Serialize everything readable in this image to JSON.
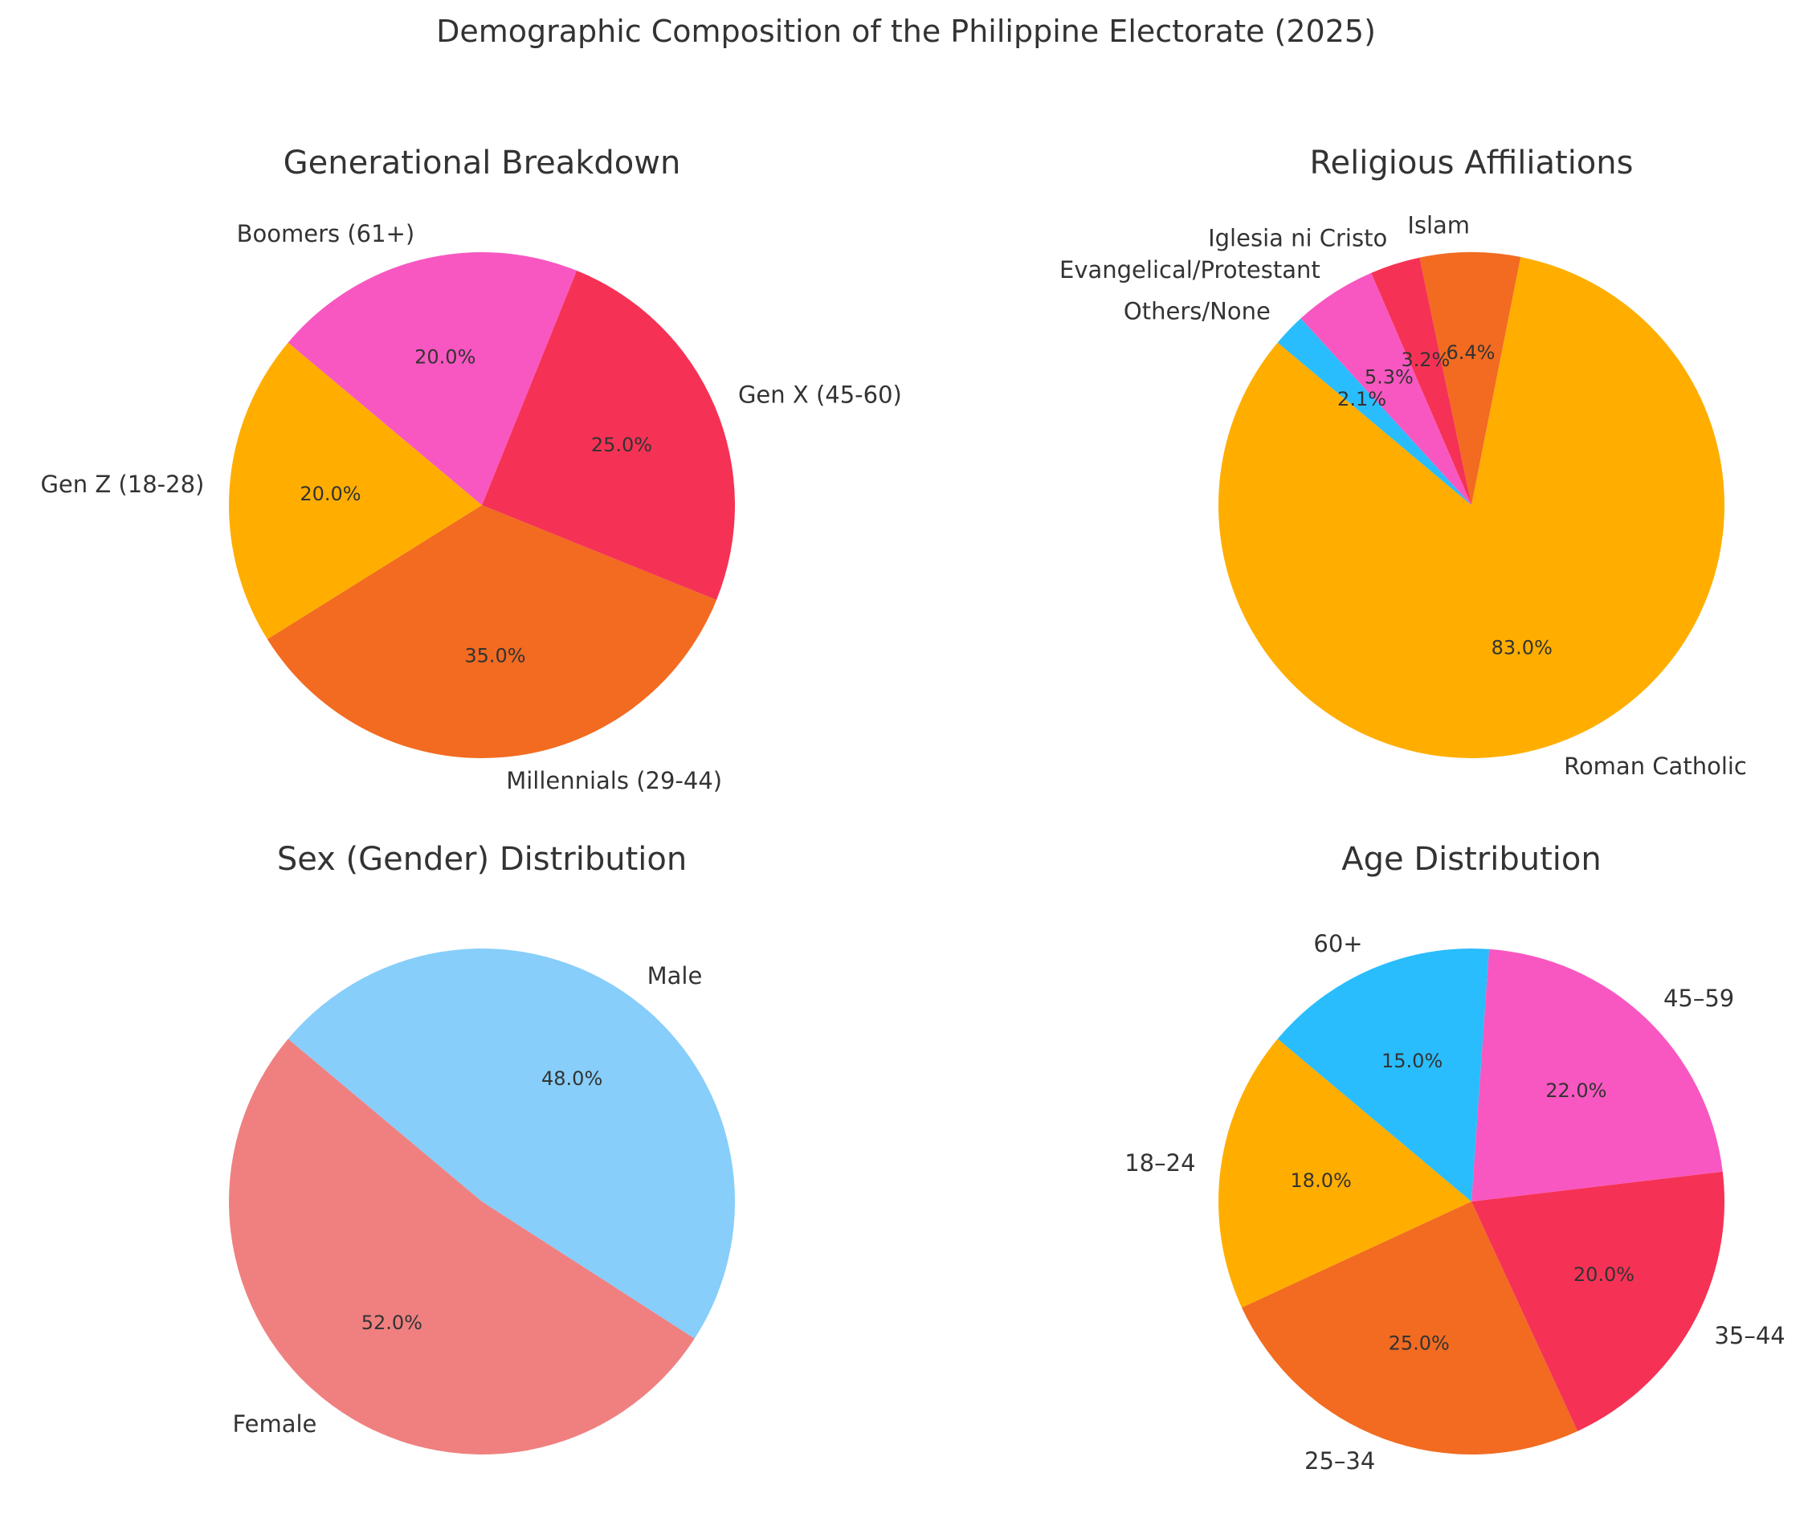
{
  "title": "Demographic Composition of the Philippine Electorate (2025)",
  "colors": {
    "gold": "#FFAE00",
    "orange": "#F26B21",
    "red": "#F53255",
    "pink": "#F857C1",
    "blue": "#29BDFD",
    "coral": "#F08080",
    "sky": "#87CEFA"
  },
  "chart_data": [
    {
      "type": "pie",
      "title": "Generational Breakdown",
      "startangle": 140,
      "labels": [
        "Gen Z (18-28)",
        "Millennials (29-44)",
        "Gen X (45-60)",
        "Boomers (61+)"
      ],
      "values": [
        20,
        35,
        25,
        20
      ],
      "pct_labels": [
        "20.0%",
        "35.0%",
        "25.0%",
        "20.0%"
      ],
      "colors": [
        "#FFAE00",
        "#F26B21",
        "#F53255",
        "#F857C1"
      ]
    },
    {
      "type": "pie",
      "title": "Religious Affiliations",
      "startangle": 140,
      "labels": [
        "Roman Catholic",
        "Islam",
        "Iglesia ni Cristo",
        "Evangelical/Protestant",
        "Others/None"
      ],
      "values": [
        83.0,
        6.4,
        3.2,
        5.3,
        2.1
      ],
      "pct_labels": [
        "83.0%",
        "6.4%",
        "3.2%",
        "5.3%",
        "2.1%"
      ],
      "colors": [
        "#FFAE00",
        "#F26B21",
        "#F53255",
        "#F857C1",
        "#29BDFD"
      ]
    },
    {
      "type": "pie",
      "title": "Sex (Gender) Distribution",
      "startangle": 140,
      "labels": [
        "Female",
        "Male"
      ],
      "values": [
        52,
        48
      ],
      "pct_labels": [
        "52.0%",
        "48.0%"
      ],
      "colors": [
        "#F08080",
        "#87CEFA"
      ]
    },
    {
      "type": "pie",
      "title": "Age Distribution",
      "startangle": 140,
      "labels": [
        "18–24",
        "25–34",
        "35–44",
        "45–59",
        "60+"
      ],
      "values": [
        18,
        25,
        20,
        22,
        15
      ],
      "pct_labels": [
        "18.0%",
        "25.0%",
        "20.0%",
        "22.0%",
        "15.0%"
      ],
      "colors": [
        "#FFAE00",
        "#F26B21",
        "#F53255",
        "#F857C1",
        "#29BDFD"
      ]
    }
  ]
}
